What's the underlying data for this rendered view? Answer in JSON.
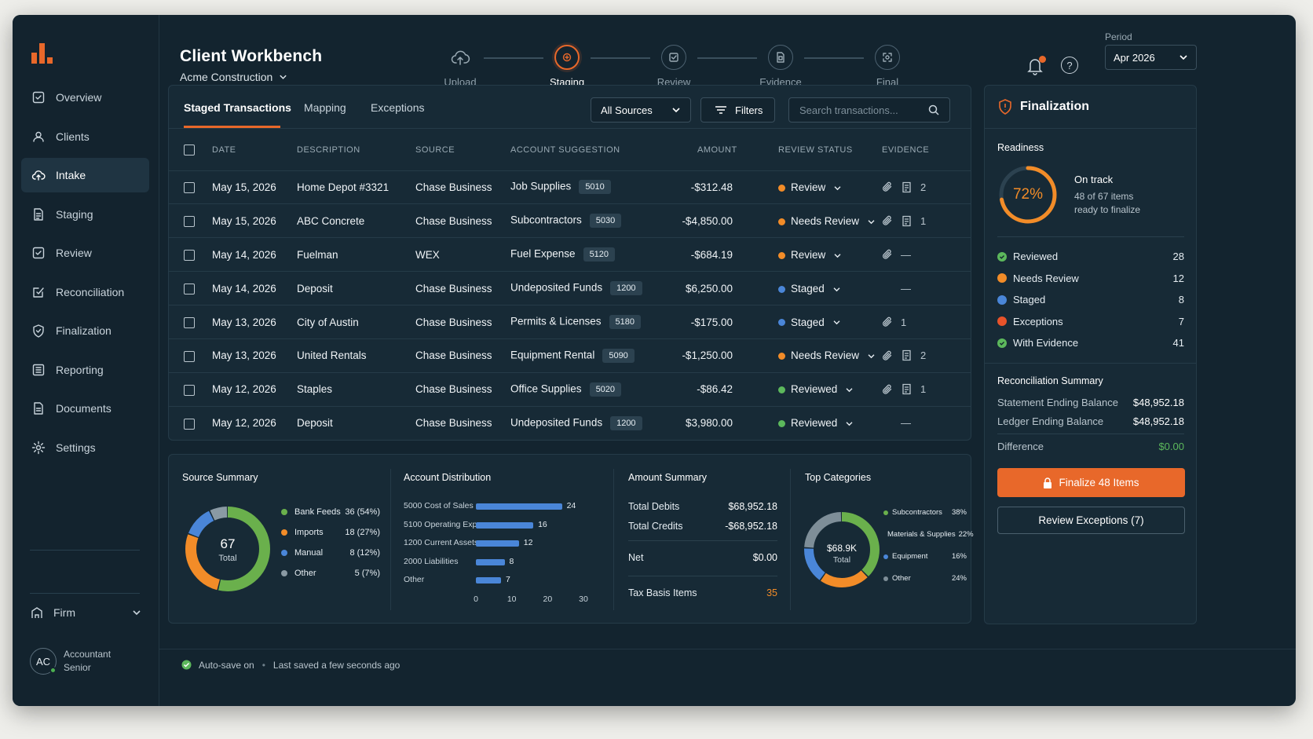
{
  "header": {
    "title": "Client Workbench",
    "client": "Acme Construction"
  },
  "stepper": [
    {
      "label": "Upload",
      "icon": "upload-cloud-icon"
    },
    {
      "label": "Staging",
      "icon": "staging-icon",
      "active": true
    },
    {
      "label": "Review",
      "icon": "review-check-icon"
    },
    {
      "label": "Evidence",
      "icon": "evidence-doc-icon"
    },
    {
      "label": "Final",
      "icon": "final-scan-icon"
    }
  ],
  "period": {
    "label": "Period",
    "value": "Apr 2026"
  },
  "sidebar": {
    "items": [
      {
        "label": "Overview",
        "icon": "overview-icon"
      },
      {
        "label": "Clients",
        "icon": "clients-icon"
      },
      {
        "label": "Intake",
        "icon": "intake-cloud-icon",
        "active": true
      },
      {
        "label": "Staging",
        "icon": "staging-doc-icon"
      },
      {
        "label": "Review",
        "icon": "review-check-icon"
      },
      {
        "label": "Reconciliation",
        "icon": "reconciliation-icon"
      },
      {
        "label": "Finalization",
        "icon": "shield-icon"
      },
      {
        "label": "Reporting",
        "icon": "reporting-icon"
      },
      {
        "label": "Documents",
        "icon": "documents-icon"
      },
      {
        "label": "Settings",
        "icon": "gear-icon"
      }
    ],
    "firm": "Firm",
    "user": {
      "initials": "AC",
      "name": "Accountant",
      "role": "Senior"
    }
  },
  "tabs": [
    "Staged Transactions",
    "Mapping",
    "Exceptions"
  ],
  "toolbar": {
    "source_select": "All Sources",
    "filters_label": "Filters",
    "search_placeholder": "Search transactions..."
  },
  "table": {
    "columns": [
      "DATE",
      "DESCRIPTION",
      "SOURCE",
      "ACCOUNT SUGGESTION",
      "AMOUNT",
      "REVIEW STATUS",
      "EVIDENCE"
    ],
    "rows": [
      {
        "date": "May 15, 2026",
        "desc": "Home Depot #3321",
        "source": "Chase Business",
        "account": "Job Supplies",
        "code": "5010",
        "amount": "-$312.48",
        "status": "Review",
        "status_color": "#f28c28",
        "attach": true,
        "receipt": true,
        "count": "2"
      },
      {
        "date": "May 15, 2026",
        "desc": "ABC Concrete",
        "source": "Chase Business",
        "account": "Subcontractors",
        "code": "5030",
        "amount": "-$4,850.00",
        "status": "Needs Review",
        "status_color": "#f28c28",
        "attach": true,
        "receipt": true,
        "count": "1"
      },
      {
        "date": "May 14, 2026",
        "desc": "Fuelman",
        "source": "WEX",
        "account": "Fuel Expense",
        "code": "5120",
        "amount": "-$684.19",
        "status": "Review",
        "status_color": "#f28c28",
        "attach": true,
        "receipt": false,
        "count": "—"
      },
      {
        "date": "May 14, 2026",
        "desc": "Deposit",
        "source": "Chase Business",
        "account": "Undeposited Funds",
        "code": "1200",
        "amount": "$6,250.00",
        "status": "Staged",
        "status_color": "#4a86d8",
        "attach": false,
        "receipt": false,
        "count": "—"
      },
      {
        "date": "May 13, 2026",
        "desc": "City of Austin",
        "source": "Chase Business",
        "account": "Permits & Licenses",
        "code": "5180",
        "amount": "-$175.00",
        "status": "Staged",
        "status_color": "#4a86d8",
        "attach": true,
        "receipt": false,
        "count": "1"
      },
      {
        "date": "May 13, 2026",
        "desc": "United Rentals",
        "source": "Chase Business",
        "account": "Equipment Rental",
        "code": "5090",
        "amount": "-$1,250.00",
        "status": "Needs Review",
        "status_color": "#f28c28",
        "attach": true,
        "receipt": true,
        "count": "2"
      },
      {
        "date": "May 12, 2026",
        "desc": "Staples",
        "source": "Chase Business",
        "account": "Office Supplies",
        "code": "5020",
        "amount": "-$86.42",
        "status": "Reviewed",
        "status_color": "#5cb85c",
        "attach": true,
        "receipt": true,
        "count": "1"
      },
      {
        "date": "May 12, 2026",
        "desc": "Deposit",
        "source": "Chase Business",
        "account": "Undeposited Funds",
        "code": "1200",
        "amount": "$3,980.00",
        "status": "Reviewed",
        "status_color": "#5cb85c",
        "attach": false,
        "receipt": false,
        "count": "—"
      }
    ]
  },
  "source_summary": {
    "title": "Source Summary",
    "total": "67",
    "total_label": "Total",
    "items": [
      {
        "label": "Bank Feeds",
        "value": "36 (54%)",
        "pct": 54,
        "color": "#6ab04c"
      },
      {
        "label": "Imports",
        "value": "18 (27%)",
        "pct": 27,
        "color": "#f28c28"
      },
      {
        "label": "Manual",
        "value": "8 (12%)",
        "pct": 12,
        "color": "#4a86d8"
      },
      {
        "label": "Other",
        "value": "5 (7%)",
        "pct": 7,
        "color": "#8a9aa4"
      }
    ]
  },
  "account_distribution": {
    "title": "Account Distribution",
    "items": [
      {
        "label": "5000 Cost of Sales",
        "value": 24
      },
      {
        "label": "5100 Operating Exp...",
        "value": 16
      },
      {
        "label": "1200 Current Assets",
        "value": 12
      },
      {
        "label": "2000 Liabilities",
        "value": 8
      },
      {
        "label": "Other",
        "value": 7
      }
    ],
    "ticks": [
      "0",
      "10",
      "20",
      "30"
    ],
    "max": 30
  },
  "amount_summary": {
    "title": "Amount Summary",
    "rows": [
      {
        "label": "Total Debits",
        "value": "$68,952.18"
      },
      {
        "label": "Total Credits",
        "value": "-$68,952.18"
      },
      {
        "label": "Net",
        "value": "$0.00"
      },
      {
        "label": "Tax Basis Items",
        "value": "35"
      }
    ]
  },
  "top_categories": {
    "title": "Top Categories",
    "total": "$68.9K",
    "total_label": "Total",
    "items": [
      {
        "label": "Subcontractors",
        "value": "38%",
        "pct": 38,
        "color": "#6ab04c"
      },
      {
        "label": "Materials & Supplies",
        "value": "22%",
        "pct": 22,
        "color": "#f28c28"
      },
      {
        "label": "Equipment",
        "value": "16%",
        "pct": 16,
        "color": "#4a86d8"
      },
      {
        "label": "Other",
        "value": "24%",
        "pct": 24,
        "color": "#7e8e98"
      }
    ]
  },
  "finalization": {
    "title": "Finalization",
    "readiness_label": "Readiness",
    "readiness_pct": "72%",
    "readiness_value": 0.72,
    "status_title": "On track",
    "status_sub1": "48 of 67 items",
    "status_sub2": "ready to finalize",
    "stats": [
      {
        "label": "Reviewed",
        "value": "28",
        "color": "#5cb85c",
        "check": true
      },
      {
        "label": "Needs Review",
        "value": "12",
        "color": "#f28c28"
      },
      {
        "label": "Staged",
        "value": "8",
        "color": "#4a86d8"
      },
      {
        "label": "Exceptions",
        "value": "7",
        "color": "#e8532a"
      },
      {
        "label": "With Evidence",
        "value": "41",
        "color": "#5cb85c",
        "check": true
      }
    ],
    "recon_title": "Reconciliation Summary",
    "recon": [
      {
        "label": "Statement Ending Balance",
        "value": "$48,952.18"
      },
      {
        "label": "Ledger Ending Balance",
        "value": "$48,952.18"
      }
    ],
    "difference_label": "Difference",
    "difference_value": "$0.00",
    "finalize_btn": "Finalize 48 Items",
    "exceptions_btn": "Review Exceptions (7)"
  },
  "footer": {
    "autosave": "Auto-save on",
    "saved": "Last saved a few seconds ago"
  }
}
